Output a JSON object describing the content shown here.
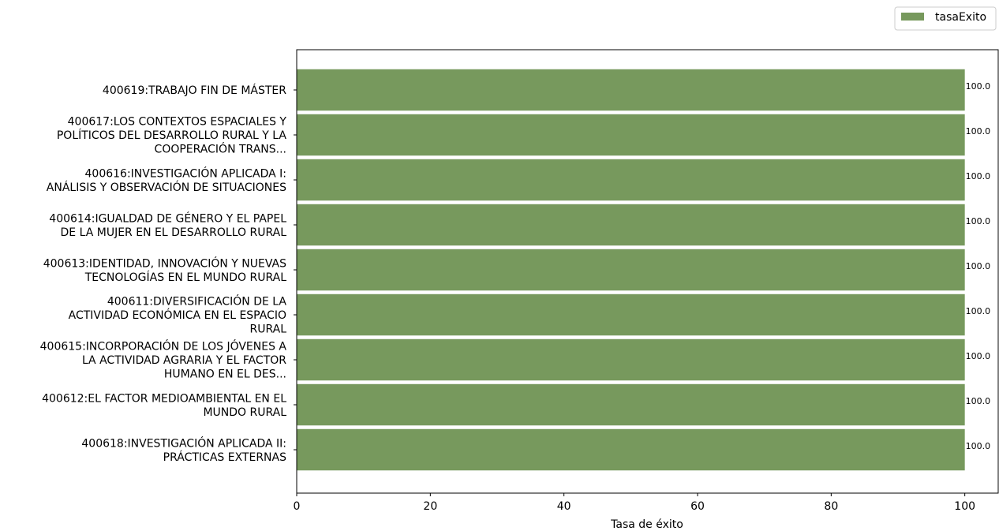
{
  "chart_data": {
    "type": "bar",
    "orientation": "horizontal",
    "title": "",
    "xlabel": "Tasa de éxito",
    "ylabel": "",
    "xlim": [
      0,
      105
    ],
    "xticks": [
      0,
      20,
      40,
      60,
      80,
      100
    ],
    "xtick_labels": [
      "0",
      "20",
      "40",
      "60",
      "80",
      "100"
    ],
    "grid": false,
    "legend_position": "top-right",
    "bar_color": "#77995d",
    "categories": [
      "400619:TRABAJO FIN DE MÁSTER",
      "400617:LOS CONTEXTOS ESPACIALES Y|POLÍTICOS DEL DESARROLLO RURAL Y LA|COOPERACIÓN TRANS...",
      "400616:INVESTIGACIÓN APLICADA I:|ANÁLISIS Y OBSERVACIÓN DE SITUACIONES",
      "400614:IGUALDAD DE GÉNERO Y EL PAPEL|DE LA MUJER EN EL DESARROLLO RURAL",
      "400613:IDENTIDAD, INNOVACIÓN Y NUEVAS|TECNOLOGÍAS EN EL MUNDO RURAL",
      "400611:DIVERSIFICACIÓN DE LA|ACTIVIDAD ECONÓMICA EN EL ESPACIO|RURAL",
      "400615:INCORPORACIÓN DE LOS JÓVENES A|LA ACTIVIDAD AGRARIA Y EL FACTOR|HUMANO EN EL DES...",
      "400612:EL FACTOR MEDIOAMBIENTAL EN EL|MUNDO RURAL",
      "400618:INVESTIGACIÓN APLICADA II:|PRÁCTICAS EXTERNAS"
    ],
    "series": [
      {
        "name": "tasaExito",
        "values": [
          100,
          100,
          100,
          100,
          100,
          100,
          100,
          100,
          100
        ],
        "data_labels": [
          "100.0",
          "100.0",
          "100.0",
          "100.0",
          "100.0",
          "100.0",
          "100.0",
          "100.0",
          "100.0"
        ]
      }
    ]
  }
}
